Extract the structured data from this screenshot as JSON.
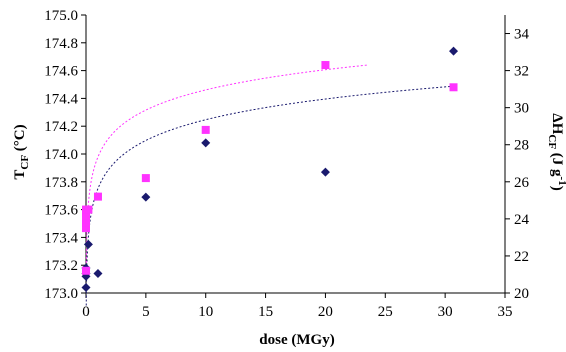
{
  "chart_data": {
    "type": "scatter",
    "title": "",
    "xlabel": "dose (MGy)",
    "ylabel_left": {
      "main": "T",
      "sub": "CF",
      "unit": " (°C)"
    },
    "ylabel_right": {
      "main": "ΔH",
      "sub": "CF",
      "unit_open": " (J g",
      "unit_sup": "-1",
      "unit_close": ")"
    },
    "xlim": [
      0,
      35
    ],
    "ylim_left": [
      173.0,
      175.0
    ],
    "ylim_right": [
      20,
      35
    ],
    "x_ticks": [
      "0",
      "5",
      "10",
      "15",
      "20",
      "25",
      "30",
      "35"
    ],
    "y_left_ticks": [
      "173.0",
      "173.2",
      "173.4",
      "173.6",
      "173.8",
      "174.0",
      "174.2",
      "174.4",
      "174.6",
      "174.8",
      "175.0"
    ],
    "y_right_ticks": [
      "20",
      "22",
      "24",
      "26",
      "28",
      "30",
      "32",
      "34"
    ],
    "grid": false,
    "legend": "none",
    "series": [
      {
        "axis": "left",
        "marker": "diamond",
        "color": "#1a1a6e",
        "points": [
          [
            0,
            173.04
          ],
          [
            0,
            173.12
          ],
          [
            0,
            173.14
          ],
          [
            0,
            173.18
          ],
          [
            0.2,
            173.35
          ],
          [
            1,
            173.14
          ],
          [
            5,
            173.69
          ],
          [
            10,
            174.08
          ],
          [
            20,
            173.87
          ],
          [
            30.7,
            174.74
          ]
        ]
      },
      {
        "axis": "right",
        "marker": "square",
        "color": "#ff33ff",
        "points": [
          [
            0,
            21.2
          ],
          [
            0,
            23.5
          ],
          [
            0,
            23.8
          ],
          [
            0,
            24.2
          ],
          [
            0,
            24.5
          ],
          [
            0.2,
            24.5
          ],
          [
            1,
            25.2
          ],
          [
            5,
            26.2
          ],
          [
            10,
            28.8
          ],
          [
            20,
            32.3
          ],
          [
            30.7,
            31.1
          ]
        ]
      }
    ],
    "trendlines": [
      {
        "axis": "left",
        "kind": "log",
        "color": "#1a1a6e",
        "x_range": [
          0.02,
          31
        ],
        "y_at_start": 172.91,
        "y_at_end": 174.49
      },
      {
        "axis": "right",
        "kind": "log",
        "color": "#ff33ff",
        "x_range": [
          0.02,
          23.5
        ],
        "y_at_start": 21.2,
        "y_at_end": 32.3
      }
    ]
  }
}
